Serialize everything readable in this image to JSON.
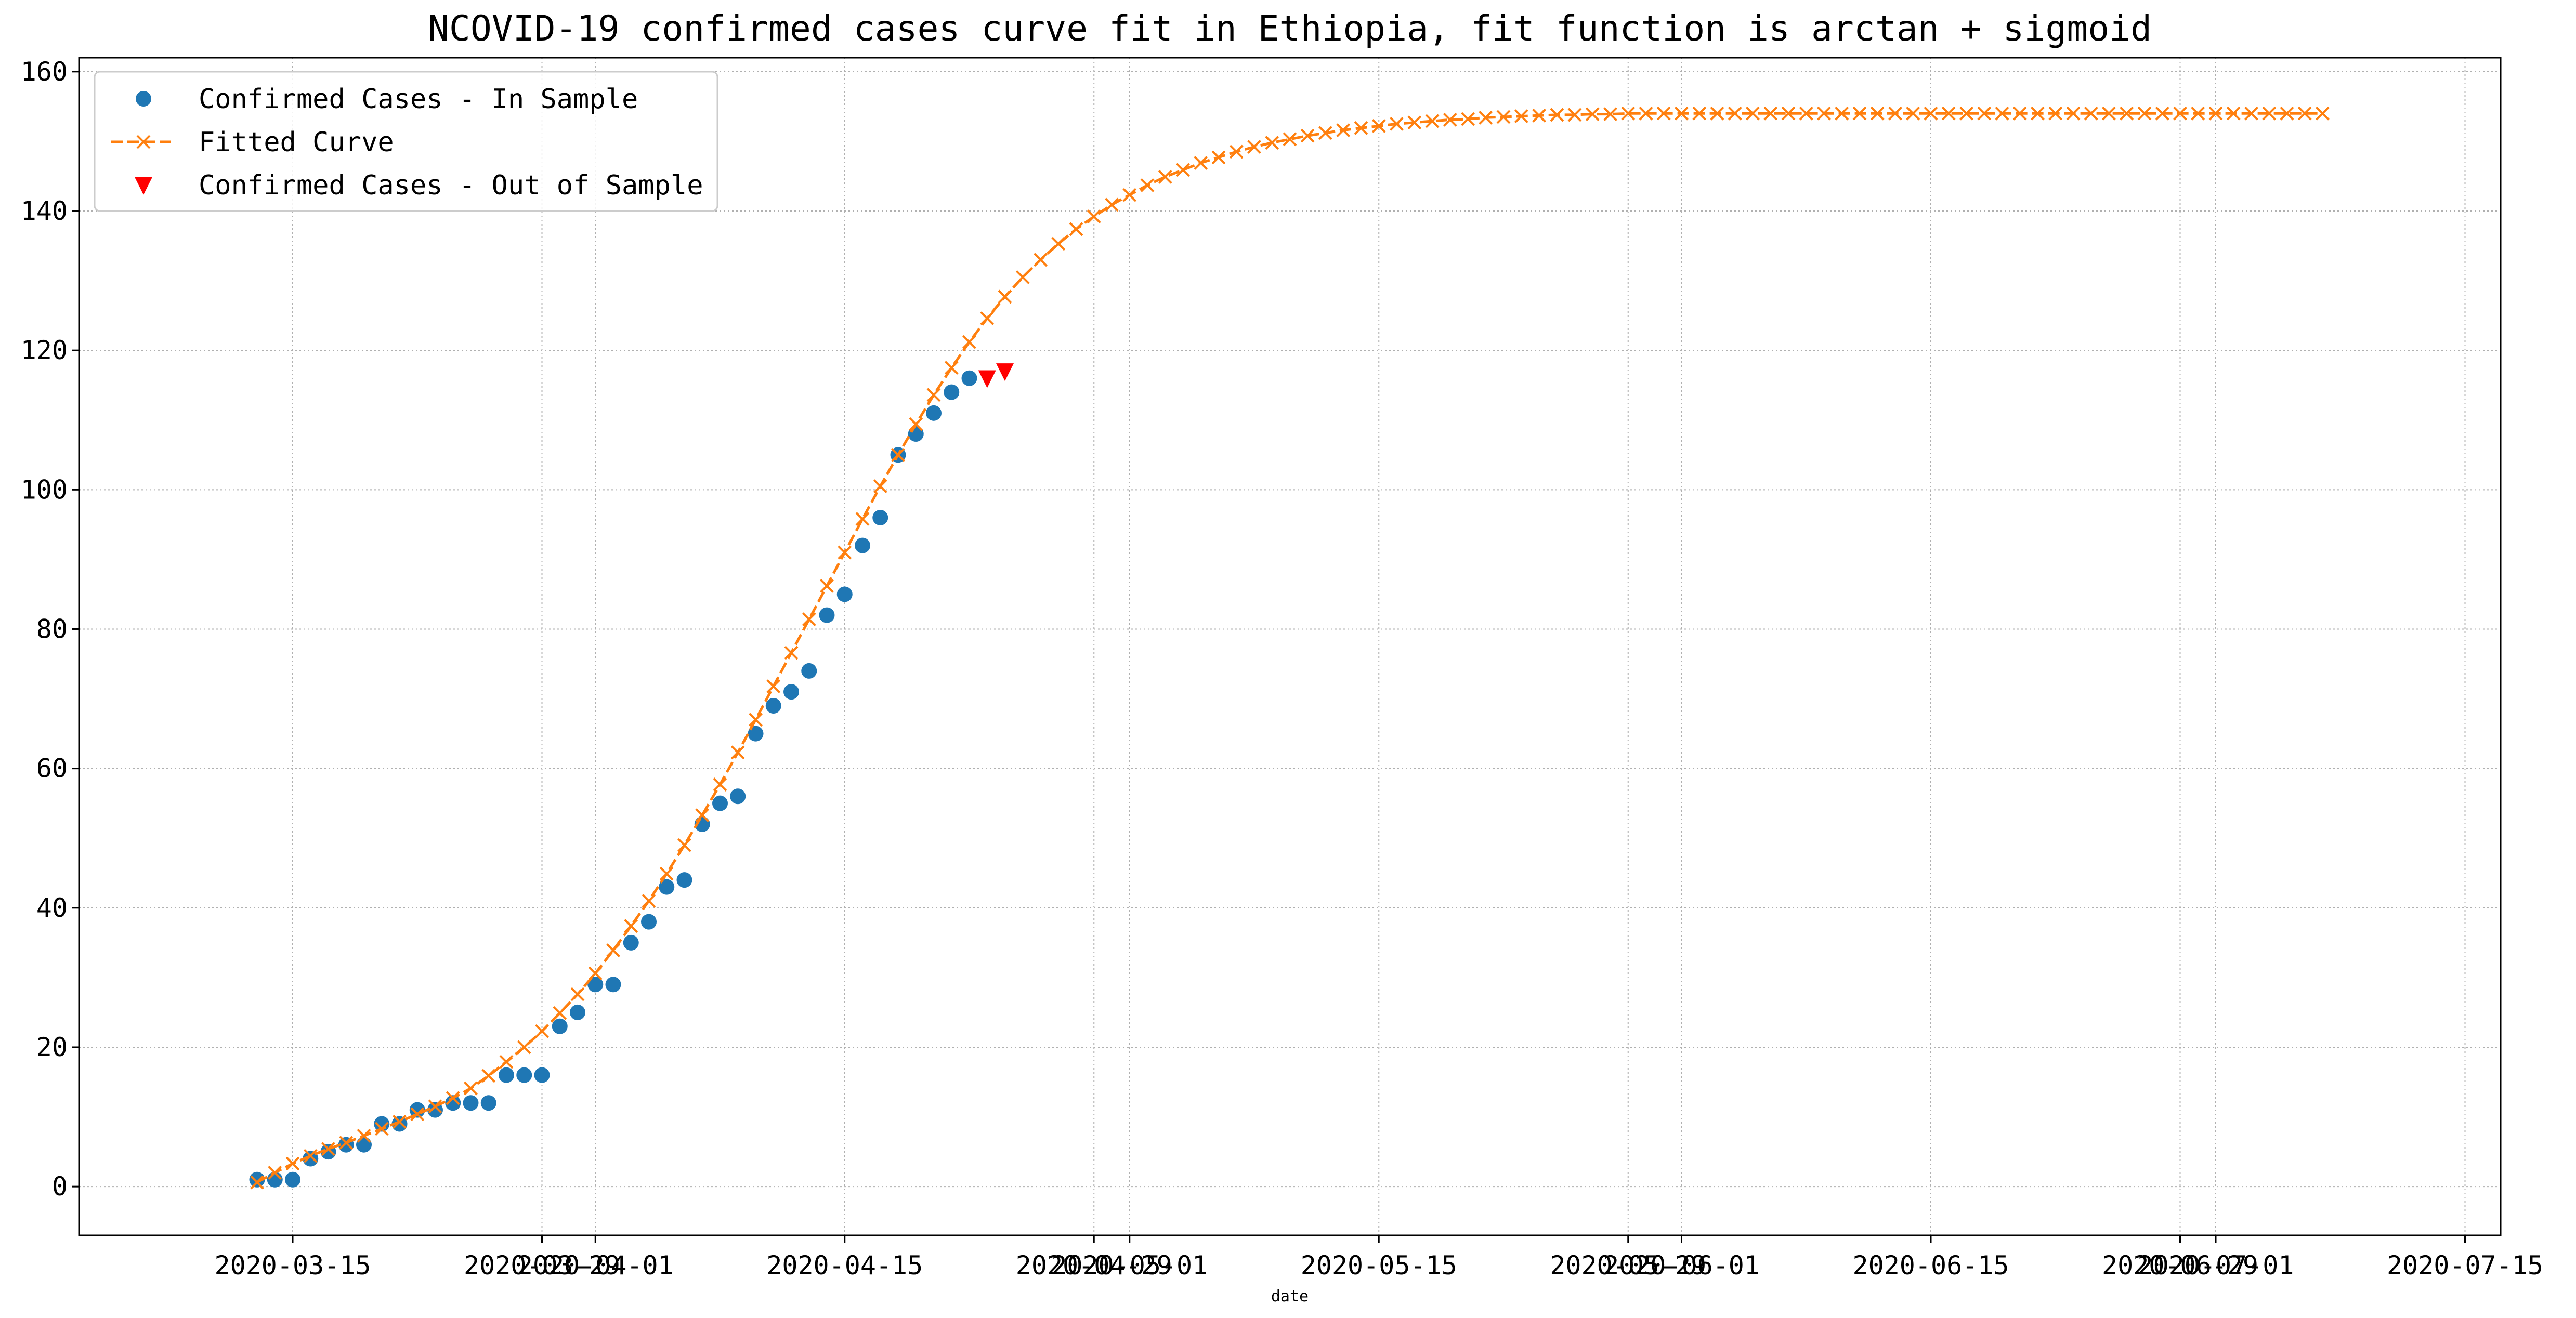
{
  "chart_data": {
    "type": "line",
    "title": "NCOVID-19 confirmed cases curve fit in Ethiopia, fit function is arctan + sigmoid",
    "xlabel": "date",
    "ylabel": "",
    "ylim": [
      -7,
      162
    ],
    "xlim": [
      "2020-03-03",
      "2020-07-17"
    ],
    "grid": true,
    "grid_style": "dotted",
    "legend_position": "top-left",
    "x_ticks": [
      {
        "date": "2020-03-15",
        "label": "2020-03-15"
      },
      {
        "date": "2020-03-29",
        "label": "2020-03-29"
      },
      {
        "date": "2020-04-01",
        "label": "2020-04-01"
      },
      {
        "date": "2020-04-15",
        "label": "2020-04-15"
      },
      {
        "date": "2020-04-29",
        "label": "2020-04-29"
      },
      {
        "date": "2020-05-01",
        "label": "2020-05-01"
      },
      {
        "date": "2020-05-15",
        "label": "2020-05-15"
      },
      {
        "date": "2020-05-29",
        "label": "2020-05-29"
      },
      {
        "date": "2020-06-01",
        "label": "2020-06-01"
      },
      {
        "date": "2020-06-15",
        "label": "2020-06-15"
      },
      {
        "date": "2020-06-29",
        "label": "2020-06-29"
      },
      {
        "date": "2020-07-01",
        "label": "2020-07-01"
      },
      {
        "date": "2020-07-15",
        "label": "2020-07-15"
      }
    ],
    "y_ticks": [
      0,
      20,
      40,
      60,
      80,
      100,
      120,
      140,
      160
    ],
    "series": [
      {
        "name": "Confirmed Cases - In Sample",
        "kind": "scatter",
        "marker": "circle",
        "color": "#1f77b4",
        "points": [
          {
            "x": "2020-03-13",
            "y": 1
          },
          {
            "x": "2020-03-14",
            "y": 1
          },
          {
            "x": "2020-03-15",
            "y": 1
          },
          {
            "x": "2020-03-16",
            "y": 4
          },
          {
            "x": "2020-03-17",
            "y": 5
          },
          {
            "x": "2020-03-18",
            "y": 6
          },
          {
            "x": "2020-03-19",
            "y": 6
          },
          {
            "x": "2020-03-20",
            "y": 9
          },
          {
            "x": "2020-03-21",
            "y": 9
          },
          {
            "x": "2020-03-22",
            "y": 11
          },
          {
            "x": "2020-03-23",
            "y": 11
          },
          {
            "x": "2020-03-24",
            "y": 12
          },
          {
            "x": "2020-03-25",
            "y": 12
          },
          {
            "x": "2020-03-26",
            "y": 12
          },
          {
            "x": "2020-03-27",
            "y": 16
          },
          {
            "x": "2020-03-28",
            "y": 16
          },
          {
            "x": "2020-03-29",
            "y": 16
          },
          {
            "x": "2020-03-30",
            "y": 23
          },
          {
            "x": "2020-03-31",
            "y": 25
          },
          {
            "x": "2020-04-01",
            "y": 29
          },
          {
            "x": "2020-04-02",
            "y": 29
          },
          {
            "x": "2020-04-03",
            "y": 35
          },
          {
            "x": "2020-04-04",
            "y": 38
          },
          {
            "x": "2020-04-05",
            "y": 43
          },
          {
            "x": "2020-04-06",
            "y": 44
          },
          {
            "x": "2020-04-07",
            "y": 52
          },
          {
            "x": "2020-04-08",
            "y": 55
          },
          {
            "x": "2020-04-09",
            "y": 56
          },
          {
            "x": "2020-04-10",
            "y": 65
          },
          {
            "x": "2020-04-11",
            "y": 69
          },
          {
            "x": "2020-04-12",
            "y": 71
          },
          {
            "x": "2020-04-13",
            "y": 74
          },
          {
            "x": "2020-04-14",
            "y": 82
          },
          {
            "x": "2020-04-15",
            "y": 85
          },
          {
            "x": "2020-04-16",
            "y": 92
          },
          {
            "x": "2020-04-17",
            "y": 96
          },
          {
            "x": "2020-04-18",
            "y": 105
          },
          {
            "x": "2020-04-19",
            "y": 108
          },
          {
            "x": "2020-04-20",
            "y": 111
          },
          {
            "x": "2020-04-21",
            "y": 114
          },
          {
            "x": "2020-04-22",
            "y": 116
          }
        ]
      },
      {
        "name": "Fitted Curve",
        "kind": "line",
        "line_style": "dashed",
        "marker": "x",
        "color": "#ff7f0e",
        "start_date": "2020-03-13",
        "values": [
          0.6,
          2.0,
          3.3,
          4.4,
          5.4,
          6.3,
          7.3,
          8.3,
          9.3,
          10.4,
          11.5,
          12.7,
          14.1,
          15.9,
          17.9,
          20.0,
          22.3,
          24.9,
          27.6,
          30.6,
          33.9,
          37.4,
          41.0,
          44.9,
          49.0,
          53.3,
          57.7,
          62.3,
          67.0,
          71.8,
          76.6,
          81.4,
          86.2,
          91.0,
          95.8,
          100.5,
          105.0,
          109.4,
          113.6,
          117.5,
          121.2,
          124.6,
          127.7,
          130.5,
          133.0,
          135.3,
          137.4,
          139.2,
          140.9,
          142.3,
          143.7,
          144.9,
          145.9,
          146.9,
          147.7,
          148.5,
          149.2,
          149.8,
          150.3,
          150.8,
          151.2,
          151.6,
          151.9,
          152.2,
          152.5,
          152.7,
          152.9,
          153.1,
          153.2,
          153.4,
          153.5,
          153.6,
          153.7,
          153.8,
          153.8,
          153.9,
          153.9,
          154.0,
          154.0,
          154.0,
          154.0,
          154.0,
          154.0,
          154.0,
          154.0,
          154.0,
          154.0,
          154.0,
          154.0,
          154.0,
          154.0,
          154.0,
          154.0,
          154.0,
          154.0,
          154.0,
          154.0,
          154.0,
          154.0,
          154.0,
          154.0,
          154.0,
          154.0,
          154.0,
          154.0,
          154.0,
          154.0,
          154.0,
          154.0,
          154.0,
          154.0,
          154.0,
          154.0,
          154.0,
          154.0,
          154.0,
          154.0
        ]
      },
      {
        "name": "Confirmed Cases - Out of Sample",
        "kind": "scatter",
        "marker": "triangle-down",
        "color": "#ff0000",
        "points": [
          {
            "x": "2020-04-23",
            "y": 116
          },
          {
            "x": "2020-04-24",
            "y": 117
          }
        ]
      }
    ]
  }
}
